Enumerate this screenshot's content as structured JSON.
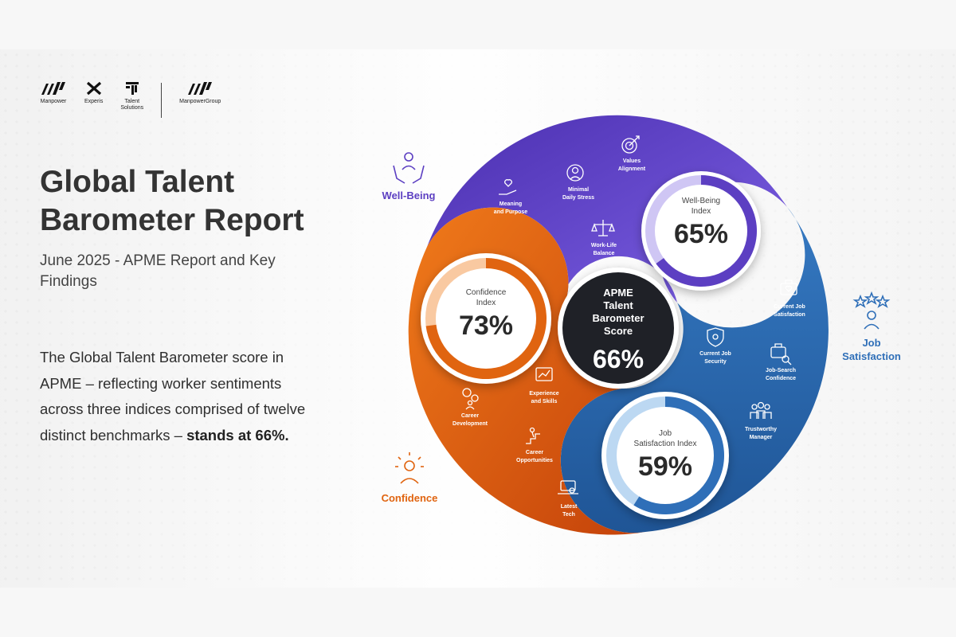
{
  "logos": [
    {
      "name": "Manpower",
      "lines": [
        "Manpower"
      ]
    },
    {
      "name": "Experis",
      "lines": [
        "Experis"
      ]
    },
    {
      "name": "Talent Solutions",
      "lines": [
        "Talent",
        "Solutions"
      ]
    },
    {
      "name": "ManpowerGroup",
      "lines": [
        "ManpowerGroup"
      ]
    }
  ],
  "title": "Global Talent Barometer Report",
  "subtitle": "June 2025 - APME Report and Key Findings",
  "body": {
    "text": "The Global Talent Barometer score in APME – reflecting worker sentiments across three indices comprised of twelve distinct benchmarks –",
    "emphasis": "stands at 66%."
  },
  "center": {
    "lines": [
      "APME",
      "Talent",
      "Barometer",
      "Score"
    ],
    "value": "66%",
    "percent": 66
  },
  "categories": {
    "well_being": "Well-Being",
    "job_satisfaction": [
      "Job",
      "Satisfaction"
    ],
    "confidence": "Confidence"
  },
  "indices": {
    "well_being": {
      "lines": [
        "Well-Being",
        "Index"
      ],
      "value": "65%",
      "percent": 65
    },
    "confidence": {
      "lines": [
        "Confidence",
        "Index"
      ],
      "value": "73%",
      "percent": 73
    },
    "job_satisfaction": {
      "lines": [
        "Job",
        "Satisfaction Index"
      ],
      "value": "59%",
      "percent": 59
    }
  },
  "benchmarks": {
    "well_being": [
      {
        "lines": [
          "Values",
          "Alignment"
        ],
        "icon": "target-icon"
      },
      {
        "lines": [
          "Minimal",
          "Daily Stress"
        ],
        "icon": "mind-icon"
      },
      {
        "lines": [
          "Meaning",
          "and Purpose"
        ],
        "icon": "heart-hand-icon"
      },
      {
        "lines": [
          "Work-Life",
          "Balance"
        ],
        "icon": "scale-icon"
      }
    ],
    "job_satisfaction": [
      {
        "lines": [
          "Current Job",
          "Satisfaction"
        ],
        "icon": "briefcase-heart-icon"
      },
      {
        "lines": [
          "Current Job",
          "Security"
        ],
        "icon": "shield-icon"
      },
      {
        "lines": [
          "Job-Search",
          "Confidence"
        ],
        "icon": "briefcase-search-icon"
      },
      {
        "lines": [
          "Trustworthy",
          "Manager"
        ],
        "icon": "team-icon"
      }
    ],
    "confidence": [
      {
        "lines": [
          "Experience",
          "and Skills"
        ],
        "icon": "chart-board-icon"
      },
      {
        "lines": [
          "Career",
          "Development"
        ],
        "icon": "gears-person-icon"
      },
      {
        "lines": [
          "Career",
          "Opportunities"
        ],
        "icon": "climb-icon"
      },
      {
        "lines": [
          "Latest",
          "Tech"
        ],
        "icon": "laptop-icon"
      }
    ]
  },
  "colors": {
    "well_being": "#5c3fc2",
    "job_satisfaction": "#2f6fb8",
    "confidence": "#e06410",
    "center": "#1f2127"
  }
}
